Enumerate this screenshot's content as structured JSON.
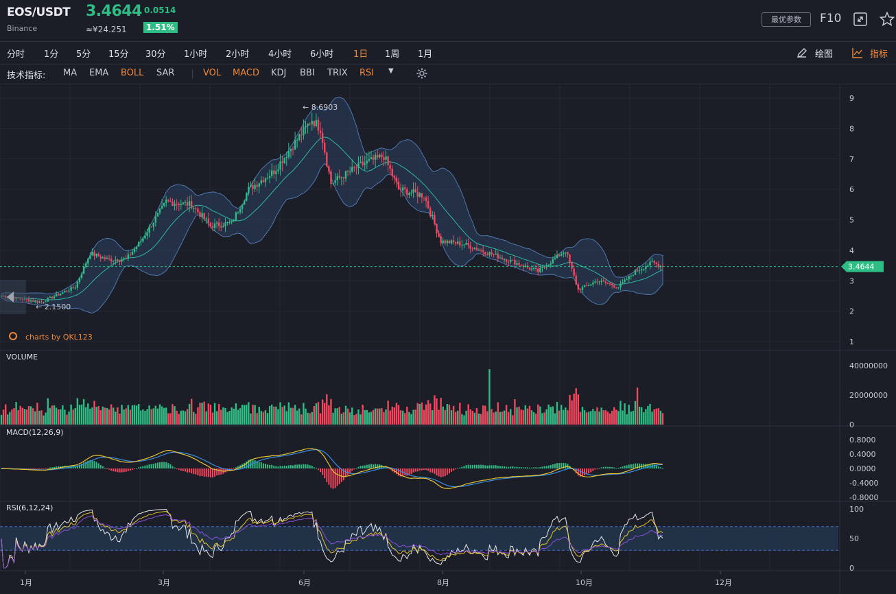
{
  "header": {
    "pair": "EOS/USDT",
    "exchange": "Binance",
    "price": "3.4644",
    "change": "0.0514",
    "cny": "≈¥24.251",
    "change_pct": "1.51%",
    "params_label": "最优参数",
    "f10_label": "F10",
    "up_color": "#2ebd85",
    "down_color": "#f6465d",
    "accent_color": "#f0883a"
  },
  "timeframes": [
    "分时",
    "1分",
    "5分",
    "15分",
    "30分",
    "1小时",
    "2小时",
    "4小时",
    "6小时",
    "1日",
    "1周",
    "1月"
  ],
  "active_timeframe": "1日",
  "tools": {
    "draw_label": "绘图",
    "indicator_label": "指标"
  },
  "indicators": {
    "label": "技术指标:",
    "main": [
      {
        "name": "MA",
        "active": false
      },
      {
        "name": "EMA",
        "active": false
      },
      {
        "name": "BOLL",
        "active": true
      },
      {
        "name": "SAR",
        "active": false
      }
    ],
    "sub": [
      {
        "name": "VOL",
        "active": true
      },
      {
        "name": "MACD",
        "active": true
      },
      {
        "name": "KDJ",
        "active": false
      },
      {
        "name": "BBI",
        "active": false
      },
      {
        "name": "TRIX",
        "active": false
      },
      {
        "name": "RSI",
        "active": true
      }
    ]
  },
  "chart_data": [
    {
      "type": "candlestick",
      "overlay": "BOLL",
      "watermark": "charts by QKL123",
      "ylim": [
        1,
        9
      ],
      "yticks": [
        "9",
        "8",
        "7",
        "6",
        "5",
        "4",
        "3",
        "2",
        "1"
      ],
      "last_price_label": "3.4644",
      "max_label": "8.6903",
      "min_label": "2.1500",
      "close_keypoints": [
        {
          "x": "1月1日",
          "y": 2.5
        },
        {
          "x": "1月10日",
          "y": 2.4
        },
        {
          "x": "1月20日",
          "y": 2.3
        },
        {
          "x": "1月28日",
          "y": 2.55
        },
        {
          "x": "2月5日",
          "y": 2.8
        },
        {
          "x": "2月12日",
          "y": 3.9
        },
        {
          "x": "2月20日",
          "y": 3.7
        },
        {
          "x": "3月1日",
          "y": 3.7
        },
        {
          "x": "3月8日",
          "y": 4.3
        },
        {
          "x": "3月20日",
          "y": 5.6
        },
        {
          "x": "4月1日",
          "y": 5.5
        },
        {
          "x": "4月10日",
          "y": 4.8
        },
        {
          "x": "4月20日",
          "y": 4.9
        },
        {
          "x": "4月28日",
          "y": 6.0
        },
        {
          "x": "5月10日",
          "y": 6.6
        },
        {
          "x": "5月28日",
          "y": 8.3
        },
        {
          "x": "6月1日",
          "y": 8.0
        },
        {
          "x": "6月6日",
          "y": 6.2
        },
        {
          "x": "6月20日",
          "y": 6.8
        },
        {
          "x": "7月1日",
          "y": 7.1
        },
        {
          "x": "7月8日",
          "y": 6.0
        },
        {
          "x": "7月20日",
          "y": 5.8
        },
        {
          "x": "7月28日",
          "y": 4.3
        },
        {
          "x": "8月8日",
          "y": 4.2
        },
        {
          "x": "8月20日",
          "y": 3.9
        },
        {
          "x": "9月1日",
          "y": 3.6
        },
        {
          "x": "9月12日",
          "y": 3.3
        },
        {
          "x": "9月25日",
          "y": 4.0
        },
        {
          "x": "10月1日",
          "y": 2.7
        },
        {
          "x": "10月10日",
          "y": 3.0
        },
        {
          "x": "10月20日",
          "y": 2.8
        },
        {
          "x": "10月28日",
          "y": 3.3
        },
        {
          "x": "11月5日",
          "y": 3.6
        },
        {
          "x": "11月10日",
          "y": 3.4644
        }
      ]
    },
    {
      "type": "bar",
      "title": "VOLUME",
      "ylim": [
        0,
        45000000
      ],
      "yticks": [
        "40000000",
        "20000000",
        "0"
      ]
    },
    {
      "type": "line",
      "title": "MACD(12,26,9)",
      "ylim": [
        -0.9,
        0.9
      ],
      "yticks": [
        "0.8000",
        "0.4000",
        "0.0000",
        "-0.4000",
        "-0.8000"
      ]
    },
    {
      "type": "line",
      "title": "RSI(6,12,24)",
      "ylim": [
        0,
        100
      ],
      "yticks": [
        "100",
        "50",
        "0"
      ],
      "bands": [
        30,
        70
      ]
    }
  ],
  "x_axis": {
    "labels": [
      "1月",
      "3月",
      "6月",
      "8月",
      "10月",
      "12月"
    ]
  }
}
